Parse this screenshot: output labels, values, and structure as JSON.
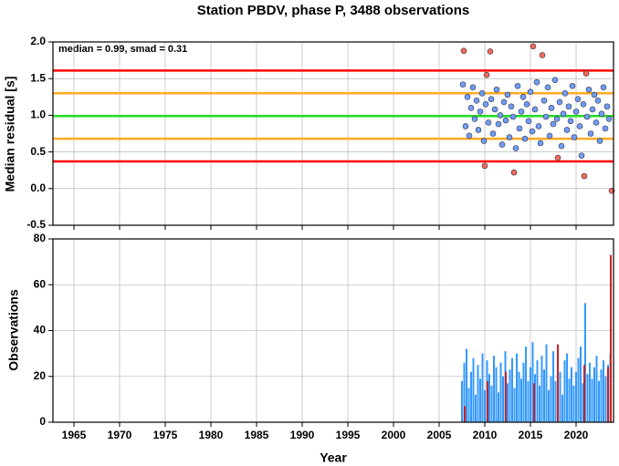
{
  "chart_data": [
    {
      "type": "scatter",
      "title": "Station PBDV, phase P, 3488 observations",
      "ylabel": "Median residual [s]",
      "annotation": "median = 0.99, smad = 0.31",
      "xlim": [
        1962.7,
        2024.1
      ],
      "xticks": [
        1965,
        1970,
        1975,
        1980,
        1985,
        1990,
        1995,
        2000,
        2005,
        2010,
        2015,
        2020
      ],
      "ylim": [
        -0.5,
        2.0
      ],
      "yticks": [
        {
          "value": 2.0,
          "label": "2.0"
        },
        1.5,
        {
          "value": 1.0,
          "label": "1.0"
        },
        0.5,
        {
          "value": 0.0,
          "label": "0.0"
        },
        -0.5
      ],
      "grid": true,
      "hlines": [
        {
          "value": 1.61,
          "color": "#ff0000"
        },
        {
          "value": 1.3,
          "color": "#ffaa22"
        },
        {
          "value": 0.99,
          "color": "#22dd22"
        },
        {
          "value": 0.68,
          "color": "#ffaa22"
        },
        {
          "value": 0.37,
          "color": "#ff0000"
        }
      ],
      "points": {
        "color": "#6f9cf5",
        "x": [
          2007.6,
          2007.9,
          2008.1,
          2008.3,
          2008.5,
          2008.7,
          2008.9,
          2009.1,
          2009.3,
          2009.5,
          2009.7,
          2009.9,
          2010.1,
          2010.4,
          2010.7,
          2010.9,
          2011.1,
          2011.3,
          2011.5,
          2011.7,
          2011.9,
          2012.1,
          2012.3,
          2012.5,
          2012.7,
          2012.9,
          2013.1,
          2013.4,
          2013.6,
          2013.8,
          2014.0,
          2014.2,
          2014.4,
          2014.6,
          2014.8,
          2015.0,
          2015.2,
          2015.5,
          2015.7,
          2015.9,
          2016.1,
          2016.5,
          2016.7,
          2016.9,
          2017.1,
          2017.3,
          2017.5,
          2017.7,
          2017.9,
          2018.2,
          2018.4,
          2018.6,
          2018.8,
          2019.0,
          2019.2,
          2019.4,
          2019.6,
          2019.8,
          2020.0,
          2020.2,
          2020.4,
          2020.6,
          2020.8,
          2021.2,
          2021.4,
          2021.6,
          2021.8,
          2022.0,
          2022.2,
          2022.4,
          2022.6,
          2022.8,
          2023.0,
          2023.2,
          2023.4,
          2023.6
        ],
        "values": [
          1.42,
          0.85,
          1.25,
          0.72,
          1.1,
          1.38,
          0.95,
          1.2,
          0.8,
          1.05,
          1.3,
          0.65,
          1.15,
          0.9,
          1.22,
          0.75,
          1.08,
          1.35,
          0.88,
          1.0,
          0.6,
          1.18,
          0.93,
          1.28,
          0.7,
          1.12,
          0.98,
          0.55,
          1.4,
          0.82,
          1.05,
          1.25,
          0.68,
          1.15,
          0.92,
          1.32,
          0.78,
          1.08,
          1.45,
          0.85,
          0.62,
          1.2,
          0.98,
          1.38,
          0.72,
          1.1,
          0.88,
          1.48,
          0.95,
          1.18,
          0.58,
          1.02,
          1.3,
          0.8,
          1.12,
          0.92,
          1.4,
          0.7,
          1.05,
          1.22,
          0.85,
          0.45,
          1.15,
          0.98,
          1.35,
          0.75,
          1.08,
          1.28,
          0.9,
          1.2,
          0.65,
          1.02,
          1.38,
          0.82,
          1.12,
          0.95
        ]
      },
      "outliers": {
        "color": "#f26a5a",
        "x": [
          2007.7,
          2010.0,
          2010.2,
          2010.6,
          2013.2,
          2015.3,
          2016.3,
          2018.0,
          2020.9,
          2021.1,
          2023.9
        ],
        "values": [
          1.88,
          0.31,
          1.55,
          1.87,
          0.22,
          1.94,
          1.82,
          0.42,
          0.17,
          1.57,
          -0.03
        ]
      }
    },
    {
      "type": "bar",
      "ylabel": "Observations",
      "xlabel": "Year",
      "xlim": [
        1962.7,
        2024.1
      ],
      "xticks": [
        1965,
        1970,
        1975,
        1980,
        1985,
        1990,
        1995,
        2000,
        2005,
        2010,
        2015,
        2020
      ],
      "ylim": [
        0,
        80
      ],
      "yticks": [
        0,
        20,
        40,
        60,
        80
      ],
      "grid": true,
      "bars": {
        "color": "#3399ff",
        "x": [
          2007.5,
          2007.75,
          2008,
          2008.25,
          2008.5,
          2008.75,
          2009,
          2009.25,
          2009.5,
          2009.75,
          2010,
          2010.25,
          2010.5,
          2010.75,
          2011,
          2011.25,
          2011.5,
          2011.75,
          2012,
          2012.25,
          2012.5,
          2012.75,
          2013,
          2013.25,
          2013.5,
          2013.75,
          2014,
          2014.25,
          2014.5,
          2014.75,
          2015,
          2015.25,
          2015.5,
          2015.75,
          2016,
          2016.25,
          2016.5,
          2016.75,
          2017,
          2017.25,
          2017.5,
          2017.75,
          2018,
          2018.25,
          2018.5,
          2018.75,
          2019,
          2019.25,
          2019.5,
          2019.75,
          2020,
          2020.25,
          2020.5,
          2020.75,
          2021,
          2021.25,
          2021.5,
          2021.75,
          2022,
          2022.25,
          2022.5,
          2022.75,
          2023,
          2023.25,
          2023.5,
          2023.75
        ],
        "values": [
          18,
          26,
          32,
          15,
          22,
          28,
          12,
          25,
          19,
          30,
          14,
          27,
          21,
          16,
          29,
          24,
          13,
          26,
          20,
          31,
          17,
          23,
          28,
          15,
          30,
          22,
          19,
          26,
          33,
          18,
          24,
          35,
          21,
          27,
          16,
          29,
          23,
          34,
          14,
          20,
          31,
          18,
          25,
          22,
          12,
          27,
          30,
          19,
          24,
          16,
          22,
          28,
          33,
          17,
          52,
          21,
          26,
          19,
          24,
          29,
          18,
          23,
          27,
          20,
          25,
          30
        ]
      },
      "red_bars": {
        "color": "#cc2222",
        "x": [
          2007.8,
          2010.3,
          2012.3,
          2015.4,
          2018.0,
          2020.9,
          2023.5,
          2023.8
        ],
        "values": [
          7,
          18,
          22,
          17,
          34,
          25,
          24,
          73
        ]
      }
    }
  ]
}
